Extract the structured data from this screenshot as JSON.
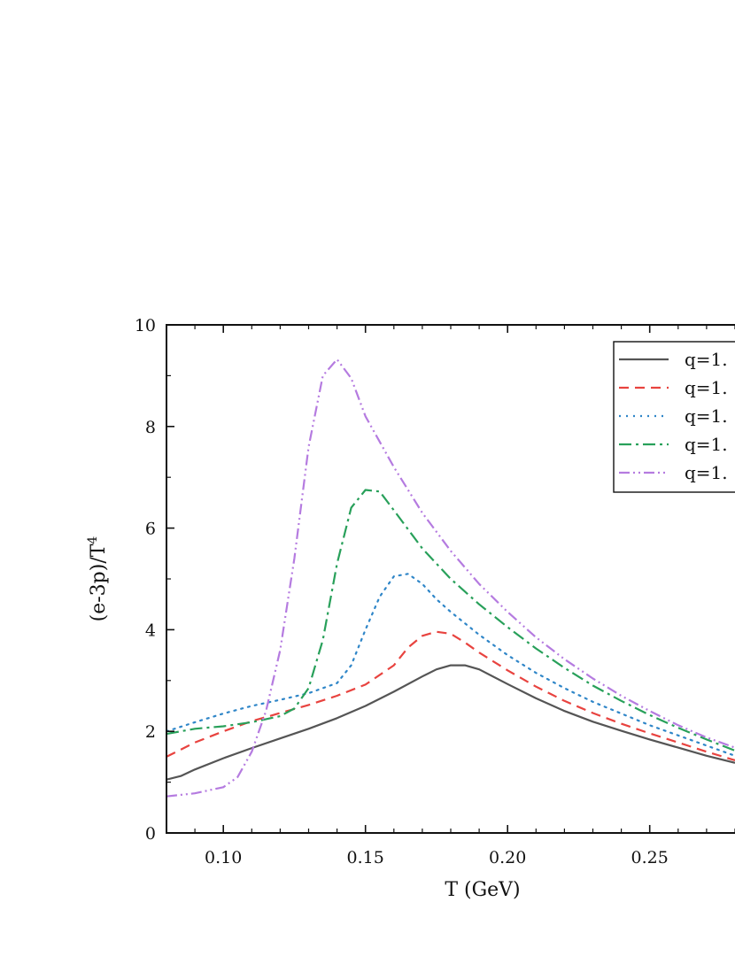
{
  "chart_data": {
    "type": "line",
    "title": "",
    "xlabel": "T (GeV)",
    "ylabel_main": "(e-3p)/T",
    "ylabel_sup": "4",
    "xlim": [
      0.08,
      0.28
    ],
    "ylim": [
      0,
      10
    ],
    "x_ticks": [
      0.1,
      0.15,
      0.2,
      0.25
    ],
    "x_tick_labels": [
      "0.10",
      "0.15",
      "0.20",
      "0.25"
    ],
    "y_ticks": [
      0,
      2,
      4,
      6,
      8,
      10
    ],
    "y_tick_labels": [
      "0",
      "2",
      "4",
      "6",
      "8",
      "10"
    ],
    "grid": false,
    "legend_position": "top-right",
    "series": [
      {
        "name": "q=1.",
        "color": "#555555",
        "style": "solid",
        "x": [
          0.08,
          0.085,
          0.09,
          0.1,
          0.11,
          0.12,
          0.13,
          0.14,
          0.15,
          0.16,
          0.17,
          0.175,
          0.18,
          0.185,
          0.19,
          0.2,
          0.21,
          0.22,
          0.23,
          0.24,
          0.25,
          0.26,
          0.27,
          0.28
        ],
        "y": [
          1.05,
          1.12,
          1.25,
          1.47,
          1.67,
          1.86,
          2.05,
          2.26,
          2.5,
          2.78,
          3.08,
          3.22,
          3.3,
          3.3,
          3.22,
          2.93,
          2.65,
          2.4,
          2.19,
          2.01,
          1.84,
          1.68,
          1.52,
          1.38
        ]
      },
      {
        "name": "q=1.",
        "color": "#e8433f",
        "style": "dashed",
        "x": [
          0.08,
          0.09,
          0.1,
          0.11,
          0.12,
          0.13,
          0.14,
          0.15,
          0.16,
          0.165,
          0.17,
          0.175,
          0.18,
          0.185,
          0.19,
          0.2,
          0.21,
          0.22,
          0.23,
          0.24,
          0.25,
          0.26,
          0.27,
          0.28
        ],
        "y": [
          1.5,
          1.78,
          2.0,
          2.2,
          2.36,
          2.52,
          2.7,
          2.92,
          3.3,
          3.65,
          3.88,
          3.96,
          3.92,
          3.75,
          3.55,
          3.2,
          2.88,
          2.6,
          2.36,
          2.15,
          1.96,
          1.78,
          1.6,
          1.43
        ]
      },
      {
        "name": "q=1.",
        "color": "#2f86c8",
        "style": "dotted",
        "x": [
          0.08,
          0.09,
          0.1,
          0.11,
          0.12,
          0.13,
          0.14,
          0.145,
          0.15,
          0.155,
          0.16,
          0.165,
          0.17,
          0.175,
          0.18,
          0.19,
          0.2,
          0.21,
          0.22,
          0.23,
          0.24,
          0.25,
          0.26,
          0.27,
          0.28
        ],
        "y": [
          2.0,
          2.18,
          2.35,
          2.5,
          2.62,
          2.75,
          2.95,
          3.3,
          4.0,
          4.65,
          5.05,
          5.1,
          4.9,
          4.6,
          4.35,
          3.9,
          3.5,
          3.15,
          2.85,
          2.58,
          2.35,
          2.12,
          1.92,
          1.72,
          1.52
        ]
      },
      {
        "name": "q=1.",
        "color": "#28a05a",
        "style": "dashdot",
        "x": [
          0.08,
          0.09,
          0.1,
          0.11,
          0.12,
          0.125,
          0.13,
          0.135,
          0.14,
          0.145,
          0.15,
          0.155,
          0.16,
          0.17,
          0.18,
          0.19,
          0.2,
          0.21,
          0.22,
          0.23,
          0.24,
          0.25,
          0.26,
          0.27,
          0.28
        ],
        "y": [
          1.95,
          2.05,
          2.1,
          2.18,
          2.3,
          2.45,
          2.85,
          3.8,
          5.3,
          6.4,
          6.75,
          6.72,
          6.35,
          5.6,
          5.0,
          4.5,
          4.05,
          3.63,
          3.25,
          2.9,
          2.6,
          2.32,
          2.07,
          1.84,
          1.62
        ]
      },
      {
        "name": "q=1.",
        "color": "#b57be0",
        "style": "dashdotdot",
        "x": [
          0.08,
          0.09,
          0.1,
          0.105,
          0.11,
          0.115,
          0.12,
          0.125,
          0.13,
          0.135,
          0.14,
          0.145,
          0.15,
          0.16,
          0.17,
          0.18,
          0.19,
          0.2,
          0.21,
          0.22,
          0.23,
          0.24,
          0.25,
          0.26,
          0.27,
          0.28
        ],
        "y": [
          0.72,
          0.78,
          0.9,
          1.1,
          1.6,
          2.4,
          3.6,
          5.4,
          7.6,
          9.0,
          9.32,
          8.95,
          8.2,
          7.2,
          6.3,
          5.55,
          4.9,
          4.35,
          3.85,
          3.42,
          3.04,
          2.7,
          2.4,
          2.12,
          1.88,
          1.68
        ]
      }
    ]
  }
}
